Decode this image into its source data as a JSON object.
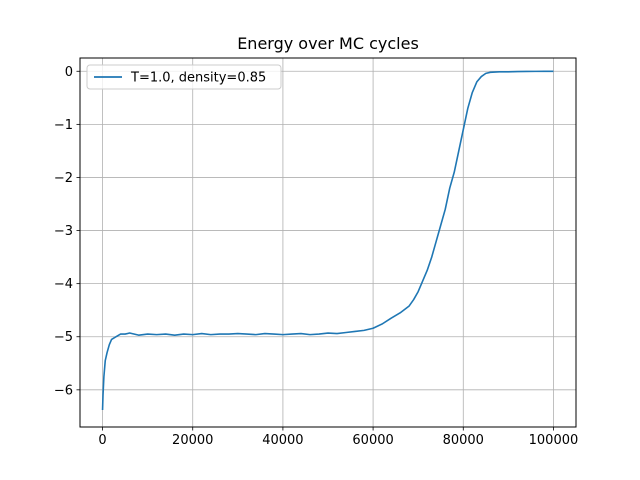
{
  "chart_data": {
    "type": "line",
    "title": "Energy over MC cycles",
    "xlabel": "",
    "ylabel": "",
    "xlim": [
      -5000,
      105000
    ],
    "ylim": [
      -6.7,
      0.25
    ],
    "xticks": [
      0,
      20000,
      40000,
      60000,
      80000,
      100000
    ],
    "yticks": [
      -6,
      -5,
      -4,
      -3,
      -2,
      -1,
      0
    ],
    "grid": true,
    "legend_position": "top-left",
    "series": [
      {
        "name": "T=1.0, density=0.85",
        "color": "#1f77b4",
        "x": [
          0,
          100,
          300,
          600,
          1000,
          1500,
          2000,
          3000,
          4000,
          5000,
          6000,
          8000,
          10000,
          12000,
          14000,
          16000,
          18000,
          20000,
          22000,
          24000,
          26000,
          28000,
          30000,
          32000,
          34000,
          36000,
          38000,
          40000,
          42000,
          44000,
          46000,
          48000,
          50000,
          52000,
          54000,
          56000,
          58000,
          60000,
          62000,
          64000,
          66000,
          68000,
          69000,
          70000,
          71000,
          72000,
          73000,
          74000,
          75000,
          76000,
          77000,
          78000,
          79000,
          80000,
          81000,
          82000,
          83000,
          84000,
          85000,
          86000,
          88000,
          90000,
          92000,
          94000,
          96000,
          98000,
          100000
        ],
        "y": [
          -6.38,
          -6.1,
          -5.75,
          -5.45,
          -5.3,
          -5.15,
          -5.05,
          -5.0,
          -4.95,
          -4.95,
          -4.93,
          -4.97,
          -4.95,
          -4.96,
          -4.95,
          -4.97,
          -4.95,
          -4.96,
          -4.94,
          -4.96,
          -4.95,
          -4.95,
          -4.94,
          -4.95,
          -4.96,
          -4.94,
          -4.95,
          -4.96,
          -4.95,
          -4.94,
          -4.96,
          -4.95,
          -4.93,
          -4.94,
          -4.92,
          -4.9,
          -4.88,
          -4.84,
          -4.76,
          -4.65,
          -4.55,
          -4.42,
          -4.3,
          -4.15,
          -3.95,
          -3.75,
          -3.5,
          -3.2,
          -2.9,
          -2.6,
          -2.2,
          -1.9,
          -1.5,
          -1.1,
          -0.7,
          -0.4,
          -0.2,
          -0.1,
          -0.04,
          -0.02,
          -0.01,
          -0.01,
          -0.005,
          -0.003,
          -0.002,
          -0.001,
          0.0
        ]
      }
    ]
  }
}
